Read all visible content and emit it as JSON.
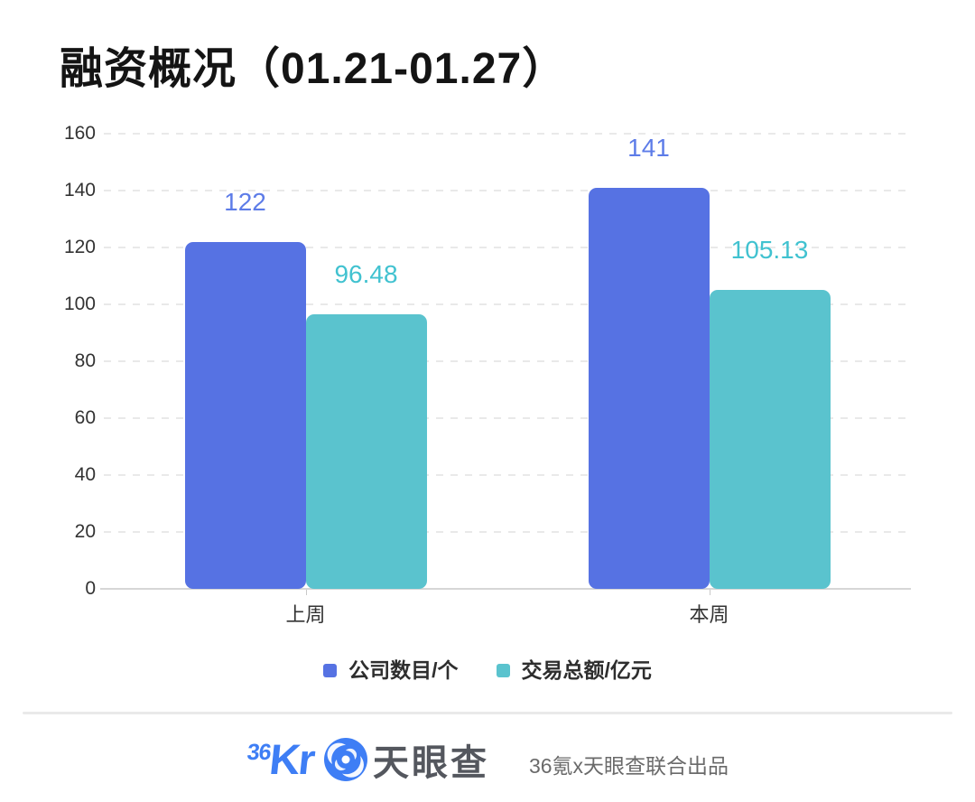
{
  "chart_data": {
    "type": "bar",
    "title": "融资概况（01.21-01.27）",
    "categories": [
      "上周",
      "本周"
    ],
    "series": [
      {
        "name": "公司数目/个",
        "color": "#5672e3",
        "label_color": "#5d7ce8",
        "values": [
          122,
          141
        ]
      },
      {
        "name": "交易总额/亿元",
        "color": "#5ac3ce",
        "label_color": "#41c2d0",
        "values": [
          96.48,
          105.13
        ]
      }
    ],
    "ylim": [
      0,
      160
    ],
    "ytick_step": 20,
    "yticks": [
      0,
      20,
      40,
      60,
      80,
      100,
      120,
      140,
      160
    ],
    "grid": "horizontal-dashed",
    "legend_position": "bottom",
    "xlabel": "",
    "ylabel": ""
  },
  "colors": {
    "grid": "#e9e9e9",
    "axis_line": "#d6d6d6",
    "axis_text": "#333333",
    "title_text": "#141414",
    "brand_blue": "#3e7ef5"
  },
  "footer": {
    "logo_36kr_sup": "36",
    "logo_36kr_main": "Kr",
    "tianyancha_label": "天眼查",
    "credit": "36氪x天眼查联合出品"
  }
}
